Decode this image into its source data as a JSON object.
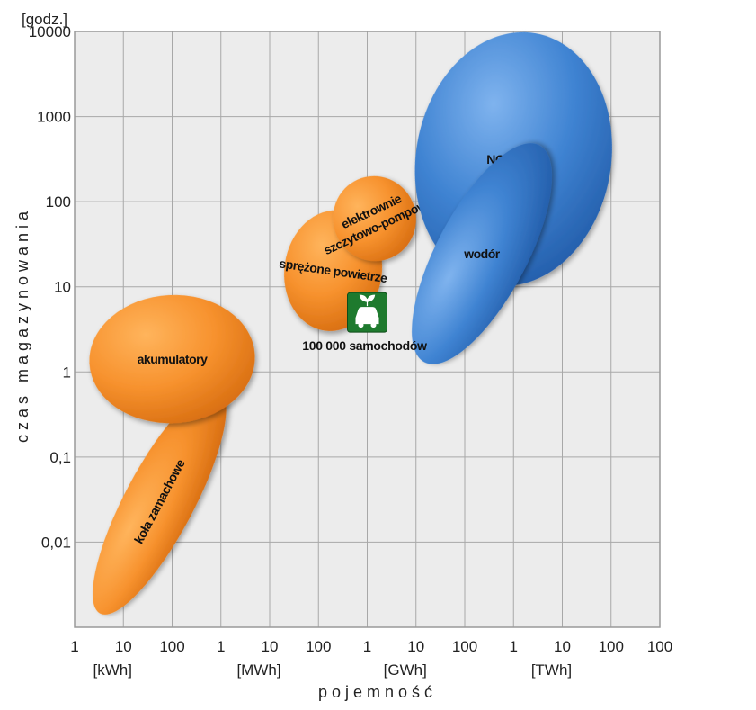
{
  "chart_data": {
    "type": "scatter",
    "title": "",
    "xlabel": "pojemność",
    "ylabel": "czas magazynowania",
    "y_unit": "[godz.]",
    "x_scale": "log",
    "y_scale": "log",
    "xlim": [
      1,
      1000000000000
    ],
    "ylim": [
      0.001,
      10000
    ],
    "grid": true,
    "x_tick_labels": [
      "1",
      "10",
      "100",
      "1",
      "10",
      "100",
      "1",
      "10",
      "100",
      "1",
      "10",
      "100"
    ],
    "x_unit_labels": [
      "[kWh]",
      "[MWh]",
      "[GWh]",
      "[TWh]"
    ],
    "y_tick_labels": [
      "10000",
      "1000",
      "100",
      "10",
      "1",
      "0,1",
      "0,01"
    ],
    "regions": [
      {
        "name": "koła zamachowe",
        "color": "#f08a24",
        "capacity_kwh": [
          3,
          1000
        ],
        "time_h": [
          0.0015,
          0.6
        ]
      },
      {
        "name": "akumulatory",
        "color": "#f08a24",
        "capacity_kwh": [
          2,
          5000
        ],
        "time_h": [
          0.25,
          8
        ]
      },
      {
        "name": "sprężone powietrze",
        "color": "#f08a24",
        "capacity_kwh": [
          20000,
          2000000
        ],
        "time_h": [
          3,
          80
        ]
      },
      {
        "name": "elektrownie szczytowo-pompowe",
        "color": "#f08a24",
        "capacity_kwh": [
          200000,
          10000000
        ],
        "time_h": [
          20,
          200
        ]
      },
      {
        "name": "NG +SNG",
        "color": "#3d7fd0",
        "capacity_kwh": [
          10000000,
          100000000000
        ],
        "time_h": [
          10,
          10000
        ]
      },
      {
        "name": "wodór",
        "color": "#3d7fd0",
        "capacity_kwh": [
          5000000,
          10000000000
        ],
        "time_h": [
          2,
          300
        ]
      }
    ],
    "markers": [
      {
        "name": "100 000 samochodów",
        "capacity_kwh": 1000000,
        "time_h": 5,
        "icon": "electric-car-icon",
        "color": "#1e7a2e"
      }
    ]
  }
}
